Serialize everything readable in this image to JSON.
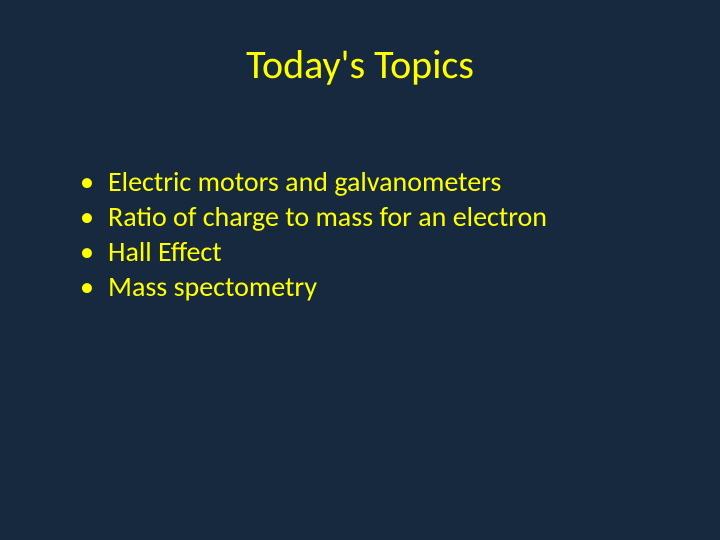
{
  "slide": {
    "title": "Today's Topics",
    "bullets": [
      "Electric motors and galvanometers",
      "Ratio of charge to mass for an electron",
      "Hall Effect",
      "Mass spectometry"
    ],
    "colors": {
      "background": "#17293f",
      "text": "#ffff00"
    },
    "typography": {
      "title_fontsize": 40,
      "bullet_fontsize": 28,
      "font_family": "Calibri"
    }
  }
}
